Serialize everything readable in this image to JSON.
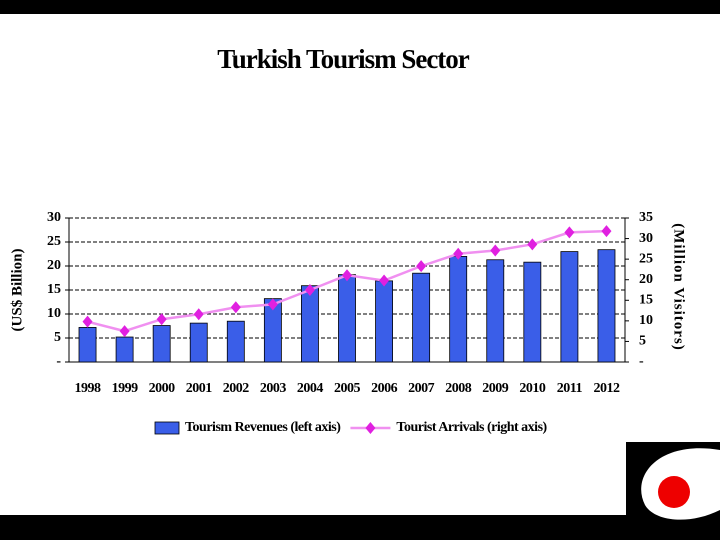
{
  "chart_data": {
    "type": "bar-line",
    "title": "Turkish Tourism Sector",
    "categories": [
      "1998",
      "1999",
      "2000",
      "2001",
      "2002",
      "2003",
      "2004",
      "2005",
      "2006",
      "2007",
      "2008",
      "2009",
      "2010",
      "2011",
      "2012"
    ],
    "series": [
      {
        "name": "Tourism Revenues (left axis)",
        "type": "bar",
        "color": "#3a5ee8",
        "values": [
          7.2,
          5.2,
          7.6,
          8.1,
          8.5,
          13.2,
          15.9,
          18.2,
          16.9,
          18.5,
          22.0,
          21.3,
          20.8,
          23.0,
          23.4
        ]
      },
      {
        "name": "Tourist Arrivals (right axis)",
        "type": "line",
        "axis": "y2",
        "color": "#f090f0",
        "marker_color": "#e020e0",
        "values": [
          9.8,
          7.5,
          10.4,
          11.6,
          13.3,
          14.0,
          17.5,
          21.1,
          19.8,
          23.3,
          26.3,
          27.1,
          28.6,
          31.5,
          31.8
        ]
      }
    ],
    "y_label": "(US$ Billion)",
    "y2_label": "(Million Visitors)",
    "ylim": [
      0,
      30
    ],
    "yticks": [
      {
        "value": 0,
        "label": "-"
      },
      5,
      10,
      15,
      20,
      25,
      30
    ],
    "y2lim": [
      0,
      35
    ],
    "y2ticks": [
      {
        "value": 0,
        "label": "-"
      },
      5,
      10,
      15,
      20,
      25,
      30,
      35
    ],
    "grid": true,
    "legend": "bottom"
  }
}
